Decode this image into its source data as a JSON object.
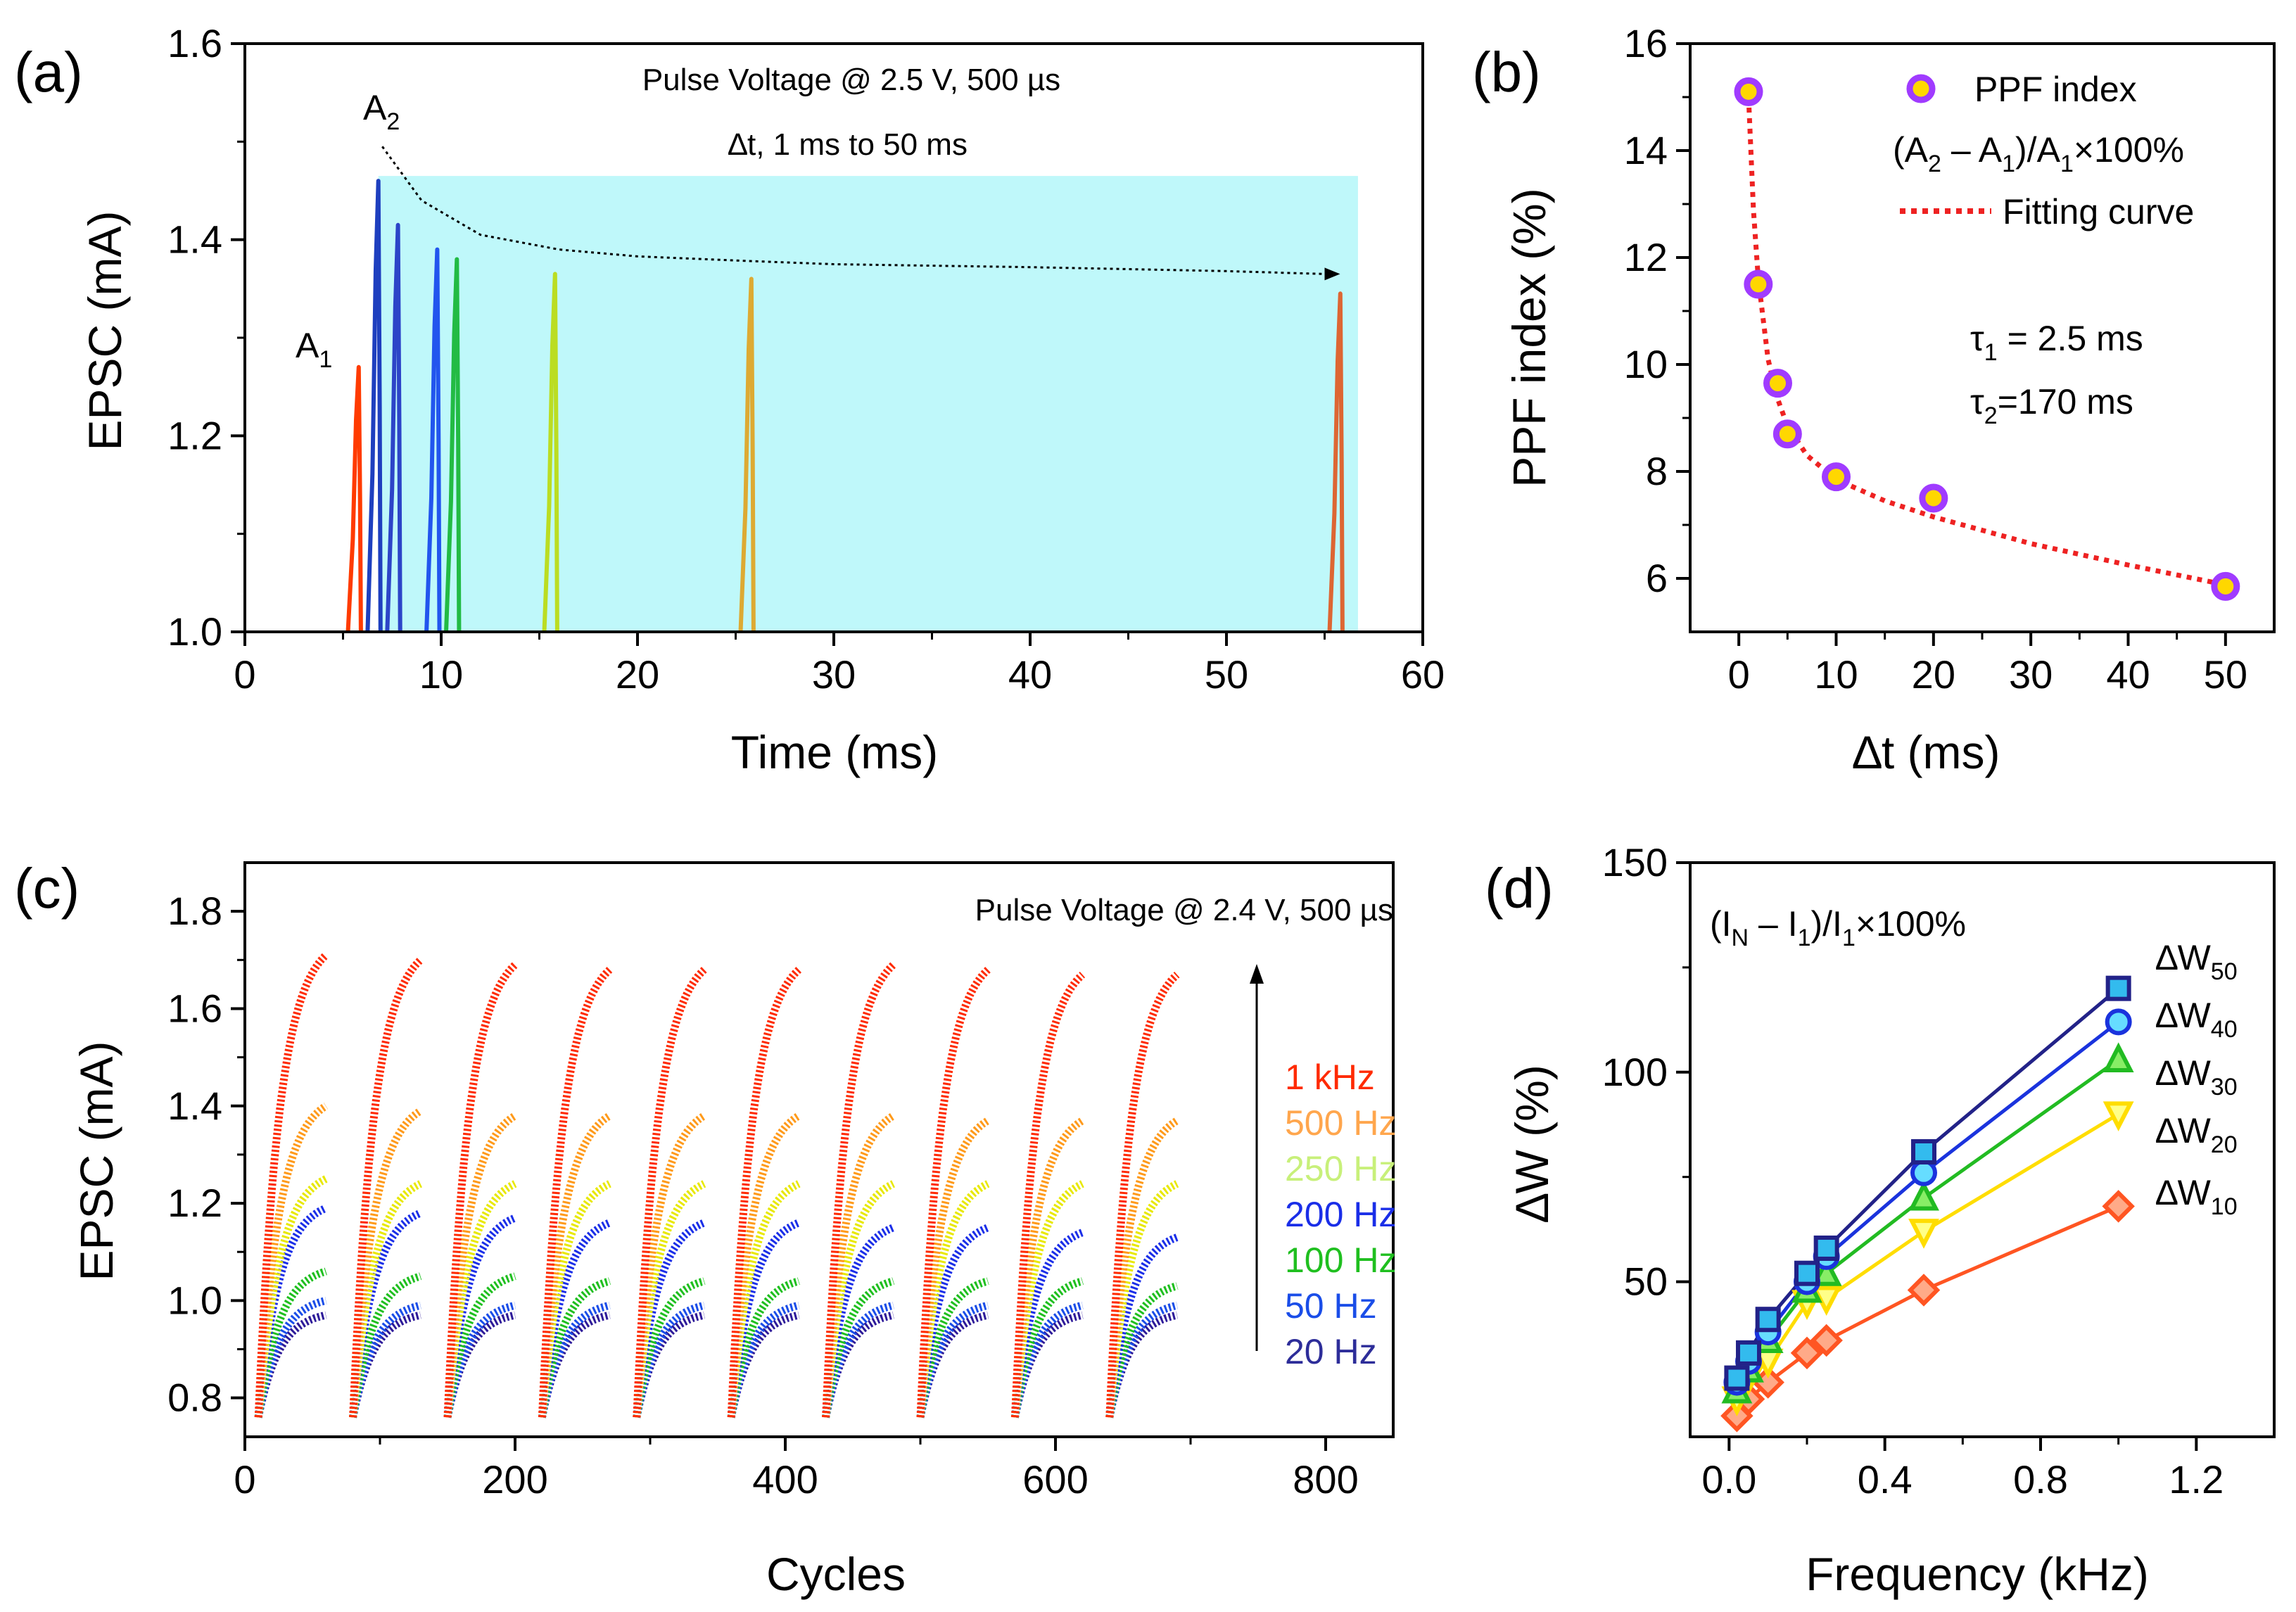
{
  "chart_data": [
    {
      "panel": "(a)",
      "type": "line",
      "xlabel": "Time (ms)",
      "ylabel": "EPSC (mA)",
      "xlim": [
        0,
        60
      ],
      "ylim": [
        1.0,
        1.6
      ],
      "xticks": [
        "0",
        "10",
        "20",
        "30",
        "40",
        "50",
        "60"
      ],
      "yticks": [
        "1.0",
        "1.2",
        "1.4",
        "1.6"
      ],
      "annotations": {
        "pulse": "Pulse Voltage @ 2.5 V, 500 µs",
        "interval": "∆t, 1 ms to 50 ms",
        "a1": "A",
        "a1_sub": "1",
        "a2": "A",
        "a2_sub": "2"
      },
      "shaded_region": {
        "x": [
          6.8,
          56.7
        ],
        "y": [
          1.0,
          1.465
        ],
        "color": "#bff8fa"
      },
      "first_pulse": {
        "t": 5.8,
        "peak": 1.27,
        "color": "#ff3b00"
      },
      "second_pulses": [
        {
          "dt": 1,
          "t": 6.8,
          "peak": 1.46,
          "color": "#1e3fbf"
        },
        {
          "dt": 2,
          "t": 7.8,
          "peak": 1.415,
          "color": "#2c44c8"
        },
        {
          "dt": 4,
          "t": 9.8,
          "peak": 1.39,
          "color": "#2255ee"
        },
        {
          "dt": 5,
          "t": 10.8,
          "peak": 1.38,
          "color": "#22bb44"
        },
        {
          "dt": 10,
          "t": 15.8,
          "peak": 1.365,
          "color": "#bbdd22"
        },
        {
          "dt": 20,
          "t": 25.8,
          "peak": 1.36,
          "color": "#ddaa33"
        },
        {
          "dt": 50,
          "t": 55.8,
          "peak": 1.345,
          "color": "#dd6633"
        }
      ],
      "trend_line": {
        "x": [
          7,
          9,
          12,
          16,
          20,
          26,
          30,
          40,
          50,
          55
        ],
        "y": [
          1.495,
          1.44,
          1.405,
          1.39,
          1.383,
          1.378,
          1.375,
          1.372,
          1.368,
          1.365
        ]
      }
    },
    {
      "panel": "(b)",
      "type": "scatter",
      "xlabel": "∆t (ms)",
      "ylabel": "PPF index (%)",
      "xlim": [
        -5,
        55
      ],
      "ylim": [
        5,
        16
      ],
      "xticks": [
        "0",
        "10",
        "20",
        "30",
        "40",
        "50"
      ],
      "yticks": [
        "6",
        "8",
        "10",
        "12",
        "14",
        "16"
      ],
      "x": [
        1,
        2,
        4,
        5,
        10,
        20,
        50
      ],
      "y": [
        15.1,
        11.5,
        9.65,
        8.7,
        7.9,
        7.5,
        5.85
      ],
      "fit": {
        "x": [
          1,
          1.5,
          2,
          3,
          4,
          5,
          7,
          10,
          15,
          20,
          30,
          40,
          50
        ],
        "y": [
          15.0,
          12.9,
          11.6,
          10.1,
          9.35,
          8.85,
          8.3,
          7.85,
          7.45,
          7.15,
          6.65,
          6.25,
          5.88
        ]
      },
      "legend": [
        "PPF index",
        "Fitting curve"
      ],
      "formula_parts": [
        "(A",
        "2",
        " – A",
        "1",
        ")/A",
        "1",
        "×100%"
      ],
      "tau1": {
        "symbol": "τ",
        "sub": "1",
        "value": " = 2.5 ms"
      },
      "tau2": {
        "symbol": "τ",
        "sub": "2",
        "value": "=170 ms"
      },
      "colors": {
        "marker_fill": "#ffd700",
        "marker_edge": "#a03bff",
        "fit": "#ee2222"
      }
    },
    {
      "panel": "(c)",
      "type": "scatter",
      "xlabel": "Cycles",
      "ylabel": "EPSC (mA)",
      "xlim": [
        0,
        850
      ],
      "ylim": [
        0.72,
        1.9
      ],
      "xticks": [
        "0",
        "200",
        "400",
        "600",
        "800"
      ],
      "yticks": [
        "0.8",
        "1.0",
        "1.2",
        "1.4",
        "1.6",
        "1.8"
      ],
      "annotation": "Pulse Voltage @ 2.4 V, 500 µs",
      "cycle_starts": [
        10,
        80,
        150,
        220,
        290,
        360,
        430,
        500,
        570,
        640
      ],
      "cycle_length": 50,
      "start_value": 0.76,
      "series": [
        {
          "name": "1 kHz",
          "color": "#ff2a00",
          "peaks": [
            1.71,
            1.7,
            1.69,
            1.68,
            1.68,
            1.68,
            1.69,
            1.68,
            1.67,
            1.67
          ]
        },
        {
          "name": "500 Hz",
          "color": "#ff9a1a",
          "peaks": [
            1.4,
            1.39,
            1.38,
            1.38,
            1.38,
            1.38,
            1.38,
            1.37,
            1.37,
            1.37
          ]
        },
        {
          "name": "250 Hz",
          "color": "#e8e800",
          "peaks": [
            1.25,
            1.24,
            1.24,
            1.24,
            1.24,
            1.24,
            1.24,
            1.24,
            1.24,
            1.24
          ]
        },
        {
          "name": "200 Hz",
          "color": "#1a2ee8",
          "peaks": [
            1.19,
            1.18,
            1.17,
            1.16,
            1.16,
            1.16,
            1.15,
            1.15,
            1.14,
            1.13
          ]
        },
        {
          "name": "100 Hz",
          "color": "#1fbf1f",
          "peaks": [
            1.06,
            1.05,
            1.05,
            1.04,
            1.04,
            1.04,
            1.04,
            1.04,
            1.04,
            1.03
          ]
        },
        {
          "name": "50 Hz",
          "color": "#1a4de8",
          "peaks": [
            1.0,
            0.99,
            0.99,
            0.99,
            0.99,
            0.99,
            0.99,
            0.99,
            0.99,
            0.99
          ]
        },
        {
          "name": "20 Hz",
          "color": "#2d1a99",
          "peaks": [
            0.97,
            0.97,
            0.97,
            0.97,
            0.97,
            0.97,
            0.97,
            0.97,
            0.97,
            0.97
          ]
        }
      ],
      "legend_colors": [
        "#ff2a00",
        "#ffa64d",
        "#c8f07a",
        "#1a2ee8",
        "#1fbf1f",
        "#1a4de8",
        "#2d2d99"
      ]
    },
    {
      "panel": "(d)",
      "type": "line",
      "xlabel": "Frequency (kHz)",
      "ylabel": "∆W (%)",
      "xlim": [
        -0.1,
        1.4
      ],
      "ylim": [
        13,
        150
      ],
      "xticks": [
        "0.0",
        "0.4",
        "0.8",
        "1.2"
      ],
      "yticks": [
        "50",
        "100",
        "150"
      ],
      "formula_parts": [
        "(I",
        "N",
        " – I",
        "1",
        ")/I",
        "1",
        "×100%"
      ],
      "x": [
        0.02,
        0.05,
        0.1,
        0.2,
        0.25,
        0.5,
        1.0
      ],
      "series": [
        {
          "name": "∆W",
          "sub": "50",
          "marker": "square",
          "fill": "#33bbee",
          "edge": "#222288",
          "line": "#222288",
          "values": [
            27,
            33,
            41,
            52,
            58,
            81,
            120
          ]
        },
        {
          "name": "∆W",
          "sub": "40",
          "marker": "circle",
          "fill": "#66ddff",
          "edge": "#1a33dd",
          "line": "#1a33dd",
          "values": [
            26,
            31,
            38,
            50,
            56,
            76,
            112
          ]
        },
        {
          "name": "∆W",
          "sub": "30",
          "marker": "triangle",
          "fill": "#88ee66",
          "edge": "#22bb22",
          "line": "#22bb22",
          "values": [
            24,
            29,
            36,
            48,
            52,
            70,
            103
          ]
        },
        {
          "name": "∆W",
          "sub": "20",
          "marker": "tri-down",
          "fill": "#ffff88",
          "edge": "#ffdd00",
          "line": "#ffdd00",
          "values": [
            22,
            27,
            31,
            45,
            46,
            62,
            90
          ]
        },
        {
          "name": "∆W",
          "sub": "10",
          "marker": "diamond",
          "fill": "#ffaa88",
          "edge": "#ff5522",
          "line": "#ff5522",
          "values": [
            18,
            22,
            26,
            33,
            36,
            48,
            68
          ]
        }
      ]
    }
  ]
}
